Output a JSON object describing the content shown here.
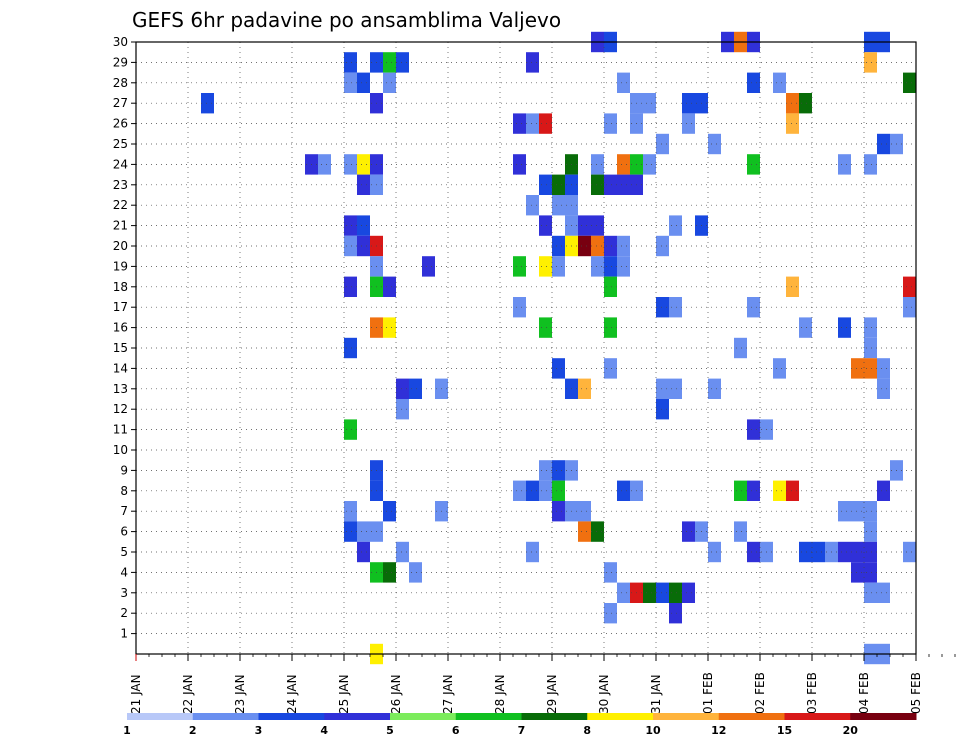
{
  "chart_data": {
    "type": "heatmap",
    "title": "GEFS 6hr padavine po ansamblima Valjevo",
    "xlabel": "",
    "ylabel": "",
    "x_tick_labels": [
      "21 JAN",
      "22 JAN",
      "23 JAN",
      "24 JAN",
      "25 JAN",
      "26 JAN",
      "27 JAN",
      "28 JAN",
      "29 JAN",
      "30 JAN",
      "31 JAN",
      "01 FEB",
      "02 FEB",
      "03 FEB",
      "04 FEB",
      "05 FEB"
    ],
    "xlim_days": [
      0,
      15
    ],
    "y_ticks": [
      1,
      2,
      3,
      4,
      5,
      6,
      7,
      8,
      9,
      10,
      11,
      12,
      13,
      14,
      15,
      16,
      17,
      18,
      19,
      20,
      21,
      22,
      23,
      24,
      25,
      26,
      27,
      28,
      29,
      30
    ],
    "ylim": [
      0,
      30
    ],
    "grid": true,
    "legend_position": "bottom",
    "colorbar": {
      "levels": [
        "1",
        "2",
        "3",
        "4",
        "5",
        "6",
        "7",
        "8",
        "10",
        "12",
        "15",
        "20"
      ],
      "colors": [
        "#b8c8f8",
        "#6a8ff0",
        "#1848e0",
        "#3030d8",
        "#7cec5c",
        "#10c020",
        "#086c08",
        "#fff000",
        "#ffb43c",
        "#f07010",
        "#d81818",
        "#780010"
      ]
    },
    "members": [
      {
        "member": 30,
        "cells": [
          [
            8.875,
            3
          ],
          [
            9.125,
            2
          ],
          [
            11.375,
            3
          ],
          [
            11.625,
            9
          ],
          [
            11.875,
            3
          ],
          [
            14.125,
            2
          ],
          [
            14.375,
            2
          ]
        ]
      },
      {
        "member": 29,
        "cells": [
          [
            4.125,
            2
          ],
          [
            4.625,
            2
          ],
          [
            4.875,
            5
          ],
          [
            5.125,
            2
          ],
          [
            7.625,
            3
          ],
          [
            14.125,
            8
          ]
        ]
      },
      {
        "member": 28,
        "cells": [
          [
            4.125,
            1
          ],
          [
            4.375,
            2
          ],
          [
            4.875,
            1
          ],
          [
            9.375,
            1
          ],
          [
            11.875,
            2
          ],
          [
            12.375,
            1
          ],
          [
            14.875,
            6
          ]
        ]
      },
      {
        "member": 27,
        "cells": [
          [
            1.375,
            2
          ],
          [
            4.625,
            3
          ],
          [
            9.625,
            1
          ],
          [
            9.875,
            1
          ],
          [
            10.625,
            2
          ],
          [
            10.875,
            2
          ],
          [
            12.625,
            9
          ],
          [
            12.875,
            6
          ]
        ]
      },
      {
        "member": 26,
        "cells": [
          [
            7.375,
            3
          ],
          [
            7.625,
            1
          ],
          [
            7.875,
            10
          ],
          [
            9.125,
            1
          ],
          [
            9.625,
            1
          ],
          [
            10.625,
            1
          ],
          [
            12.625,
            8
          ]
        ]
      },
      {
        "member": 25,
        "cells": [
          [
            10.125,
            1
          ],
          [
            11.125,
            1
          ],
          [
            14.375,
            2
          ],
          [
            14.625,
            1
          ]
        ]
      },
      {
        "member": 24,
        "cells": [
          [
            3.375,
            3
          ],
          [
            3.625,
            1
          ],
          [
            4.125,
            1
          ],
          [
            4.375,
            7
          ],
          [
            4.625,
            3
          ],
          [
            7.375,
            3
          ],
          [
            8.375,
            6
          ],
          [
            8.875,
            1
          ],
          [
            9.375,
            9
          ],
          [
            9.625,
            5
          ],
          [
            9.875,
            1
          ],
          [
            11.875,
            5
          ],
          [
            13.625,
            1
          ],
          [
            14.125,
            1
          ]
        ]
      },
      {
        "member": 23,
        "cells": [
          [
            4.375,
            3
          ],
          [
            4.625,
            1
          ],
          [
            7.875,
            2
          ],
          [
            8.125,
            6
          ],
          [
            8.375,
            2
          ],
          [
            8.875,
            6
          ],
          [
            9.125,
            3
          ],
          [
            9.375,
            3
          ],
          [
            9.625,
            3
          ]
        ]
      },
      {
        "member": 22,
        "cells": [
          [
            7.625,
            1
          ],
          [
            8.125,
            1
          ],
          [
            8.375,
            1
          ]
        ]
      },
      {
        "member": 21,
        "cells": [
          [
            4.125,
            3
          ],
          [
            4.375,
            2
          ],
          [
            7.875,
            3
          ],
          [
            8.375,
            1
          ],
          [
            8.625,
            3
          ],
          [
            8.875,
            3
          ],
          [
            10.375,
            1
          ],
          [
            10.875,
            2
          ]
        ]
      },
      {
        "member": 20,
        "cells": [
          [
            4.125,
            1
          ],
          [
            4.375,
            3
          ],
          [
            4.625,
            10
          ],
          [
            8.125,
            2
          ],
          [
            8.375,
            7
          ],
          [
            8.625,
            11
          ],
          [
            8.875,
            9
          ],
          [
            9.125,
            3
          ],
          [
            9.375,
            1
          ],
          [
            10.125,
            1
          ]
        ]
      },
      {
        "member": 19,
        "cells": [
          [
            4.625,
            1
          ],
          [
            5.625,
            3
          ],
          [
            7.375,
            5
          ],
          [
            7.875,
            7
          ],
          [
            8.125,
            1
          ],
          [
            8.875,
            1
          ],
          [
            9.125,
            2
          ],
          [
            9.375,
            1
          ]
        ]
      },
      {
        "member": 18,
        "cells": [
          [
            4.125,
            3
          ],
          [
            4.625,
            5
          ],
          [
            4.875,
            3
          ],
          [
            9.125,
            5
          ],
          [
            12.625,
            8
          ],
          [
            14.875,
            10
          ]
        ]
      },
      {
        "member": 17,
        "cells": [
          [
            7.375,
            1
          ],
          [
            10.125,
            2
          ],
          [
            10.375,
            1
          ],
          [
            11.875,
            1
          ],
          [
            14.875,
            1
          ]
        ]
      },
      {
        "member": 16,
        "cells": [
          [
            4.625,
            9
          ],
          [
            4.875,
            7
          ],
          [
            7.875,
            5
          ],
          [
            9.125,
            5
          ],
          [
            12.875,
            1
          ],
          [
            13.625,
            2
          ],
          [
            14.125,
            1
          ]
        ]
      },
      {
        "member": 15,
        "cells": [
          [
            4.125,
            2
          ],
          [
            11.625,
            1
          ],
          [
            14.125,
            1
          ]
        ]
      },
      {
        "member": 14,
        "cells": [
          [
            8.125,
            2
          ],
          [
            9.125,
            1
          ],
          [
            12.375,
            1
          ],
          [
            13.875,
            9
          ],
          [
            14.125,
            9
          ],
          [
            14.375,
            1
          ]
        ]
      },
      {
        "member": 13,
        "cells": [
          [
            5.125,
            3
          ],
          [
            5.375,
            2
          ],
          [
            5.875,
            1
          ],
          [
            8.375,
            2
          ],
          [
            8.625,
            8
          ],
          [
            10.125,
            1
          ],
          [
            10.375,
            1
          ],
          [
            11.125,
            1
          ],
          [
            14.375,
            1
          ]
        ]
      },
      {
        "member": 12,
        "cells": [
          [
            5.125,
            1
          ],
          [
            10.125,
            2
          ]
        ]
      },
      {
        "member": 11,
        "cells": [
          [
            4.125,
            5
          ],
          [
            11.875,
            3
          ],
          [
            12.125,
            1
          ]
        ]
      },
      {
        "member": 10,
        "cells": []
      },
      {
        "member": 9,
        "cells": [
          [
            4.625,
            2
          ],
          [
            7.875,
            1
          ],
          [
            8.125,
            2
          ],
          [
            8.375,
            1
          ],
          [
            14.625,
            1
          ]
        ]
      },
      {
        "member": 8,
        "cells": [
          [
            4.625,
            2
          ],
          [
            7.375,
            1
          ],
          [
            7.625,
            2
          ],
          [
            7.875,
            1
          ],
          [
            8.125,
            5
          ],
          [
            9.375,
            2
          ],
          [
            9.625,
            1
          ],
          [
            11.625,
            5
          ],
          [
            11.875,
            3
          ],
          [
            12.375,
            7
          ],
          [
            12.625,
            10
          ],
          [
            14.375,
            3
          ]
        ]
      },
      {
        "member": 7,
        "cells": [
          [
            4.125,
            1
          ],
          [
            4.875,
            2
          ],
          [
            5.875,
            1
          ],
          [
            8.125,
            3
          ],
          [
            8.375,
            1
          ],
          [
            8.625,
            1
          ],
          [
            13.625,
            1
          ],
          [
            13.875,
            1
          ],
          [
            14.125,
            1
          ]
        ]
      },
      {
        "member": 6,
        "cells": [
          [
            4.125,
            2
          ],
          [
            4.375,
            1
          ],
          [
            4.625,
            1
          ],
          [
            8.625,
            9
          ],
          [
            8.875,
            6
          ],
          [
            10.625,
            3
          ],
          [
            10.875,
            1
          ],
          [
            11.625,
            1
          ],
          [
            14.125,
            1
          ]
        ]
      },
      {
        "member": 5,
        "cells": [
          [
            4.375,
            3
          ],
          [
            5.125,
            1
          ],
          [
            7.625,
            1
          ],
          [
            11.125,
            1
          ],
          [
            11.875,
            3
          ],
          [
            12.125,
            1
          ],
          [
            12.875,
            2
          ],
          [
            13.125,
            2
          ],
          [
            13.375,
            1
          ],
          [
            13.625,
            3
          ],
          [
            13.875,
            3
          ],
          [
            14.125,
            3
          ],
          [
            14.875,
            1
          ]
        ]
      },
      {
        "member": 4,
        "cells": [
          [
            4.625,
            5
          ],
          [
            4.875,
            6
          ],
          [
            5.375,
            1
          ],
          [
            9.125,
            1
          ],
          [
            13.875,
            3
          ],
          [
            14.125,
            3
          ]
        ]
      },
      {
        "member": 3,
        "cells": [
          [
            9.375,
            1
          ],
          [
            9.625,
            10
          ],
          [
            9.875,
            6
          ],
          [
            10.125,
            2
          ],
          [
            10.375,
            6
          ],
          [
            10.625,
            3
          ],
          [
            14.125,
            1
          ],
          [
            14.375,
            1
          ]
        ]
      },
      {
        "member": 2,
        "cells": [
          [
            9.125,
            1
          ],
          [
            10.375,
            3
          ]
        ]
      },
      {
        "member": 1,
        "cells": []
      },
      {
        "member": 0,
        "cells": [
          [
            4.625,
            7
          ],
          [
            14.125,
            1
          ],
          [
            14.375,
            1
          ]
        ]
      }
    ]
  }
}
